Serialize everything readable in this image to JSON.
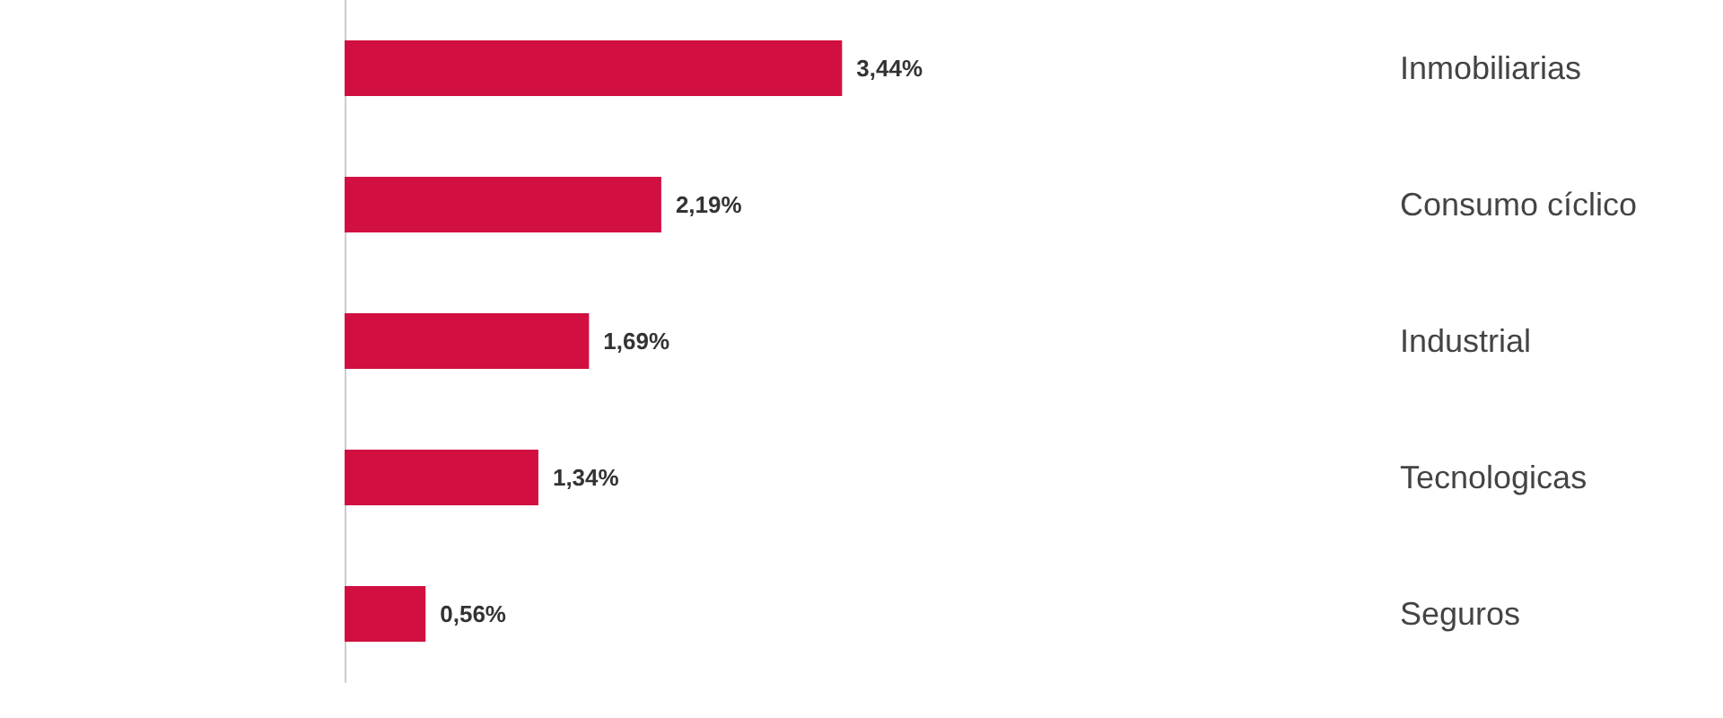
{
  "chart_data": {
    "type": "bar",
    "orientation": "horizontal",
    "categories": [
      "Inmobiliarias",
      "Consumo cíclico",
      "Industrial",
      "Tecnologicas",
      "Seguros"
    ],
    "values": [
      3.44,
      2.19,
      1.69,
      1.34,
      0.56
    ],
    "value_labels": [
      "3,44%",
      "2,19%",
      "1,69%",
      "1,34%",
      "0,56%"
    ],
    "color": "#d10f41"
  }
}
